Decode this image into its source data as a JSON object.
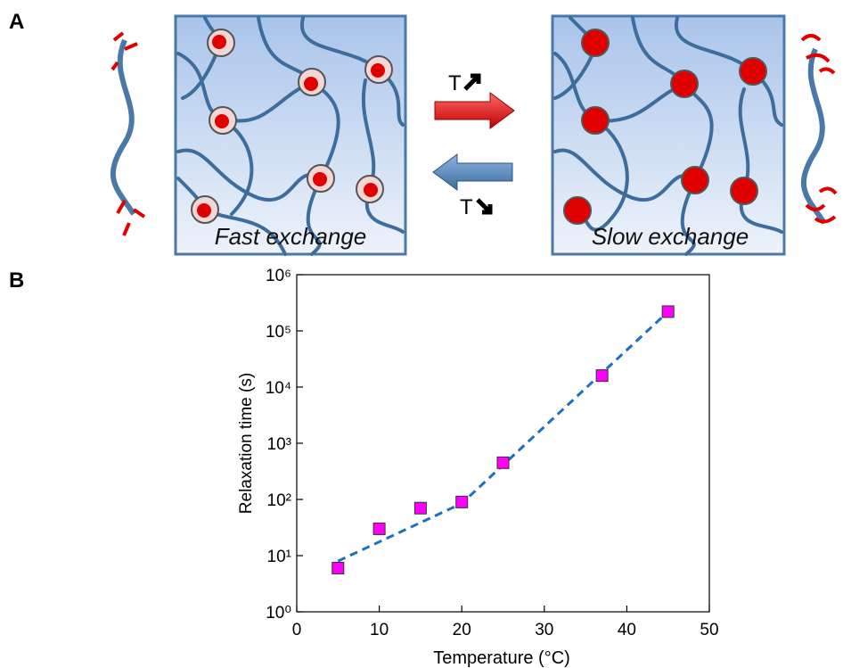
{
  "panels": {
    "a": "A",
    "b": "B"
  },
  "diagram": {
    "left_label": "Fast exchange",
    "right_label": "Slow exchange",
    "arrow_up_label": "T",
    "arrow_down_label": "T"
  },
  "chart_data": {
    "type": "scatter",
    "xlabel": "Temperature (°C)",
    "ylabel": "Relaxation time (s)",
    "x": [
      5,
      10,
      15,
      20,
      25,
      37,
      45
    ],
    "values": [
      6,
      30,
      70,
      90,
      450,
      16000,
      220000
    ],
    "color": "#ff00ff",
    "fit": {
      "x": [
        5,
        20,
        45
      ],
      "values": [
        8,
        85,
        220000
      ],
      "color": "#1f6fbf",
      "dashed": true
    },
    "xlim": [
      0,
      50
    ],
    "xticks": [
      0,
      10,
      20,
      30,
      40,
      50
    ],
    "log_y": true,
    "ylim": [
      1,
      1000000
    ],
    "yticks": [
      {
        "value": 1,
        "label": "10⁰"
      },
      {
        "value": 10,
        "label": "10¹"
      },
      {
        "value": 100,
        "label": "10²"
      },
      {
        "value": 1000,
        "label": "10³"
      },
      {
        "value": 10000,
        "label": "10⁴"
      },
      {
        "value": 100000,
        "label": "10⁵"
      },
      {
        "value": 1000000,
        "label": "10⁶"
      }
    ]
  }
}
